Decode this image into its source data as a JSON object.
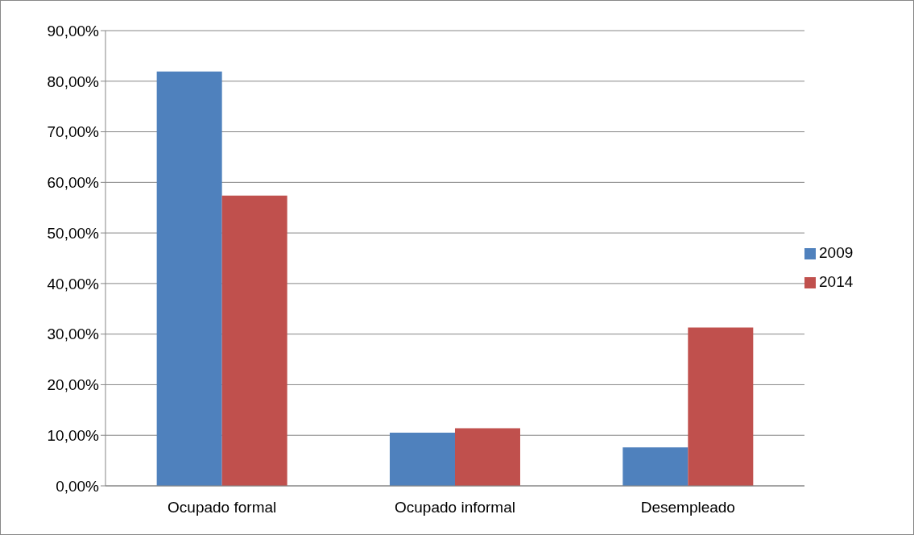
{
  "chart_data": {
    "type": "bar",
    "categories": [
      "Ocupado formal",
      "Ocupado informal",
      "Desempleado"
    ],
    "series": [
      {
        "name": "2009",
        "color": "#4f81bd",
        "values": [
          81.9,
          10.5,
          7.6
        ]
      },
      {
        "name": "2014",
        "color": "#c0504d",
        "values": [
          57.4,
          11.4,
          31.3
        ]
      }
    ],
    "ylim": [
      0,
      90
    ],
    "yticks": [
      {
        "value": 0,
        "label": "0,00%"
      },
      {
        "value": 10,
        "label": "10,00%"
      },
      {
        "value": 20,
        "label": "20,00%"
      },
      {
        "value": 30,
        "label": "30,00%"
      },
      {
        "value": 40,
        "label": "40,00%"
      },
      {
        "value": 50,
        "label": "50,00%"
      },
      {
        "value": 60,
        "label": "60,00%"
      },
      {
        "value": 70,
        "label": "70,00%"
      },
      {
        "value": 80,
        "label": "80,00%"
      },
      {
        "value": 90,
        "label": "90,00%"
      }
    ],
    "grid": "y",
    "legend": "right"
  }
}
